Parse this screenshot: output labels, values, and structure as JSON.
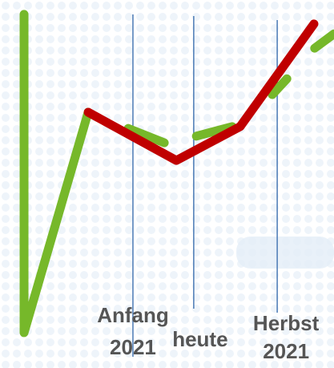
{
  "chart_data": {
    "type": "line",
    "xlim": [
      0,
      100
    ],
    "ylim": [
      0,
      100
    ],
    "series": [
      {
        "color": "#76b82a",
        "x": [
          7.2,
          7.2,
          26.4,
          null,
          38.4,
          49.2,
          null,
          58.8,
          69.5,
          null,
          81.5,
          85.9,
          null,
          94.2,
          100
        ],
        "values": [
          96.1,
          9.6,
          69.5,
          null,
          65.1,
          61.2,
          null,
          63.0,
          65.6,
          null,
          74.3,
          78.6,
          null,
          86.9,
          90.8
        ]
      },
      {
        "color": "#c00000",
        "x": [
          26.4,
          52.8,
          71.9,
          94.0
        ],
        "values": [
          69.5,
          56.4,
          65.6,
          93.5
        ]
      }
    ],
    "markers": [
      {
        "x": 39.8,
        "label": [
          "Anfang",
          "2021"
        ]
      },
      {
        "x": 58.0,
        "label": [
          "heute"
        ]
      },
      {
        "x": 83.0,
        "label": [
          "Herbst",
          "2021"
        ]
      }
    ]
  }
}
